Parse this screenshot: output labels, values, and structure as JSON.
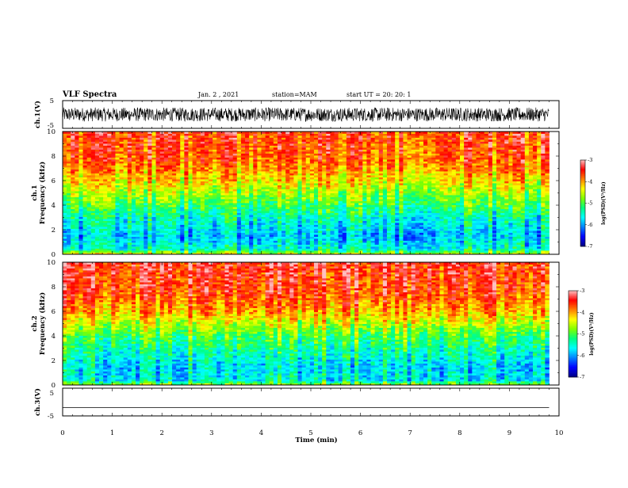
{
  "header": {
    "title": "VLF Spectra",
    "date": "Jan. 2 , 2021",
    "station": "station=MAM",
    "start": "start UT =  20: 20: 1"
  },
  "chart_data": [
    {
      "id": "ch1-waveform",
      "type": "line",
      "ylabel": "ch.1(V)",
      "ylim": [
        -5,
        5
      ],
      "yticks": [
        "5",
        "-5"
      ],
      "xlim": [
        0,
        10
      ],
      "series": [
        {
          "kind": "dense-noise",
          "amplitude_range": [
            -2.5,
            2.5
          ],
          "x_range": [
            0,
            9.8
          ]
        }
      ]
    },
    {
      "id": "ch1-spectrogram",
      "type": "heatmap",
      "ylabel_top": "ch.1",
      "ylabel": "Frequency (kHz)",
      "ylim": [
        0,
        10
      ],
      "yticks": [
        "0",
        "2",
        "4",
        "6",
        "8",
        "10"
      ],
      "xlim": [
        0,
        10
      ],
      "x_range": [
        0,
        9.8
      ],
      "colorbar": {
        "label": "log(PSD)(V²/Hz)",
        "range": [
          -7,
          -3
        ],
        "ticks": [
          "-3",
          "-4",
          "-5",
          "-6",
          "-7"
        ]
      },
      "profile_kHz_vs_logPSD": [
        [
          0,
          -4.4
        ],
        [
          0.4,
          -5.5
        ],
        [
          1.5,
          -5.9
        ],
        [
          3.0,
          -5.5
        ],
        [
          4.0,
          -5.1
        ],
        [
          5.0,
          -4.7
        ],
        [
          6.0,
          -4.3
        ],
        [
          7.5,
          -3.8
        ],
        [
          10,
          -3.6
        ]
      ]
    },
    {
      "id": "ch2-spectrogram",
      "type": "heatmap",
      "ylabel_top": "ch.2",
      "ylabel": "Frequency (kHz)",
      "ylim": [
        0,
        10
      ],
      "yticks": [
        "0",
        "2",
        "4",
        "6",
        "8",
        "10"
      ],
      "xlim": [
        0,
        10
      ],
      "x_range": [
        0,
        9.8
      ],
      "colorbar": {
        "label": "log(PSD)(V²/Hz)",
        "range": [
          -7,
          -3
        ],
        "ticks": [
          "-3",
          "-4",
          "-5",
          "-6",
          "-7"
        ]
      },
      "profile_kHz_vs_logPSD": [
        [
          0,
          -4.6
        ],
        [
          0.4,
          -5.6
        ],
        [
          1.5,
          -5.7
        ],
        [
          3.0,
          -5.3
        ],
        [
          4.0,
          -5.0
        ],
        [
          5.0,
          -4.5
        ],
        [
          6.0,
          -4.0
        ],
        [
          7.5,
          -3.6
        ],
        [
          10,
          -3.4
        ]
      ]
    },
    {
      "id": "ch3-waveform",
      "type": "line",
      "ylabel": "ch.3(V)",
      "ylim": [
        -5,
        5
      ],
      "yticks": [
        "5",
        "-5"
      ],
      "xlim": [
        0,
        10
      ],
      "xlabel": "Time (min)",
      "xticks": [
        "0",
        "1",
        "2",
        "3",
        "4",
        "5",
        "6",
        "7",
        "8",
        "9",
        "10"
      ],
      "series": [
        {
          "kind": "flat",
          "value": -2,
          "x_range": [
            0,
            9.8
          ]
        }
      ]
    }
  ],
  "colors": {
    "colormap": [
      "#000080",
      "#0000ff",
      "#0080ff",
      "#00ffff",
      "#00ff80",
      "#80ff00",
      "#ffff00",
      "#ff8000",
      "#ff0000",
      "#ffc0c0"
    ],
    "trace": "#000000",
    "axis": "#000000"
  }
}
